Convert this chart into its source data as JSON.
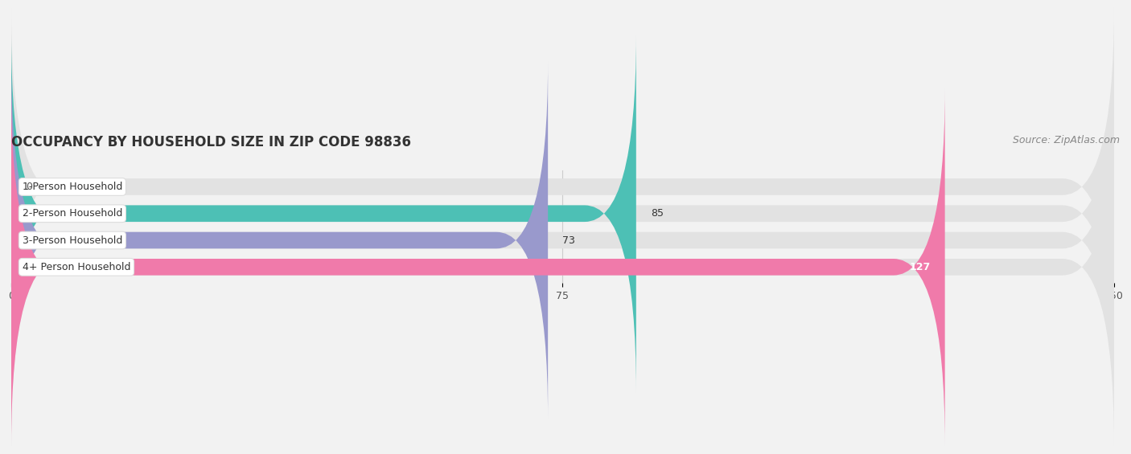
{
  "title": "OCCUPANCY BY HOUSEHOLD SIZE IN ZIP CODE 98836",
  "source": "Source: ZipAtlas.com",
  "categories": [
    "1-Person Household",
    "2-Person Household",
    "3-Person Household",
    "4+ Person Household"
  ],
  "values": [
    0,
    85,
    73,
    127
  ],
  "bar_colors": [
    "#cba8cc",
    "#4dc0b5",
    "#9999cc",
    "#f07aaa"
  ],
  "bar_label_colors": [
    "#333333",
    "#333333",
    "#333333",
    "#ffffff"
  ],
  "value_inside": [
    false,
    false,
    false,
    true
  ],
  "xlim_data": [
    0,
    150
  ],
  "xticks": [
    0,
    75,
    150
  ],
  "background_color": "#f2f2f2",
  "bar_bg_color": "#e2e2e2",
  "title_fontsize": 12,
  "source_fontsize": 9,
  "label_fontsize": 9,
  "value_fontsize": 9,
  "bar_height": 0.62,
  "figsize": [
    14.06,
    2.33
  ]
}
